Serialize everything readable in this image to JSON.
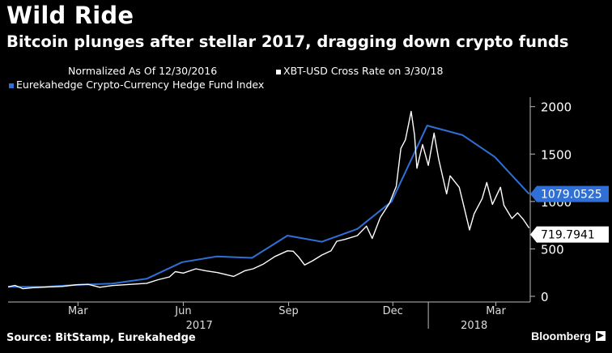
{
  "header": {
    "title": "Wild Ride",
    "subtitle": "Bitcoin plunges after stellar 2017, dragging down crypto funds"
  },
  "legend": {
    "normalized_note": "Normalized As Of 12/30/2016",
    "xbt_label": "XBT-USD Cross Rate  on 3/30/18",
    "fund_label": "Eurekahedge Crypto-Currency Hedge Fund Index"
  },
  "footer": {
    "source": "Source: BitStamp, Eurekahedge",
    "brand": "Bloomberg"
  },
  "colors": {
    "background": "#000000",
    "xbt_series": "#ffffff",
    "fund_series": "#2f6fd6",
    "fund_label_bg": "#2f6fd6"
  },
  "chart_data": {
    "type": "line",
    "title": "Wild Ride",
    "subtitle": "Bitcoin plunges after stellar 2017, dragging down crypto funds",
    "ylim": [
      -60,
      2100
    ],
    "yticks": [
      0,
      500,
      1000,
      1500,
      2000
    ],
    "xlim": [
      "2016-12-30",
      "2018-03-31"
    ],
    "xticks": [
      {
        "date": "2017-03-01",
        "label": "Mar"
      },
      {
        "date": "2017-06-01",
        "label": "Jun"
      },
      {
        "date": "2017-09-01",
        "label": "Sep"
      },
      {
        "date": "2017-12-01",
        "label": "Dec"
      },
      {
        "date": "2018-03-01",
        "label": "Mar"
      }
    ],
    "year_labels": [
      {
        "date": "2017-06-15",
        "label": "2017"
      },
      {
        "date": "2018-02-10",
        "label": "2018"
      }
    ],
    "year_divider": "2018-01-01",
    "grid": false,
    "legend_position": "top-left",
    "series": [
      {
        "name": "XBT-USD Cross Rate  on 3/30/18",
        "color": "#ffffff",
        "last_value_label": "719.7941",
        "points": [
          [
            "2016-12-30",
            100
          ],
          [
            "2017-01-05",
            115
          ],
          [
            "2017-01-12",
            80
          ],
          [
            "2017-01-20",
            90
          ],
          [
            "2017-02-01",
            97
          ],
          [
            "2017-02-15",
            104
          ],
          [
            "2017-02-28",
            122
          ],
          [
            "2017-03-10",
            126
          ],
          [
            "2017-03-20",
            95
          ],
          [
            "2017-03-31",
            113
          ],
          [
            "2017-04-15",
            125
          ],
          [
            "2017-04-30",
            137
          ],
          [
            "2017-05-10",
            175
          ],
          [
            "2017-05-20",
            205
          ],
          [
            "2017-05-25",
            260
          ],
          [
            "2017-06-01",
            245
          ],
          [
            "2017-06-12",
            290
          ],
          [
            "2017-06-20",
            270
          ],
          [
            "2017-07-01",
            250
          ],
          [
            "2017-07-15",
            210
          ],
          [
            "2017-07-25",
            270
          ],
          [
            "2017-08-01",
            290
          ],
          [
            "2017-08-10",
            340
          ],
          [
            "2017-08-20",
            420
          ],
          [
            "2017-08-31",
            480
          ],
          [
            "2017-09-05",
            475
          ],
          [
            "2017-09-10",
            410
          ],
          [
            "2017-09-15",
            330
          ],
          [
            "2017-09-22",
            375
          ],
          [
            "2017-09-30",
            435
          ],
          [
            "2017-10-08",
            480
          ],
          [
            "2017-10-13",
            580
          ],
          [
            "2017-10-20",
            600
          ],
          [
            "2017-10-31",
            640
          ],
          [
            "2017-11-08",
            740
          ],
          [
            "2017-11-13",
            610
          ],
          [
            "2017-11-20",
            830
          ],
          [
            "2017-11-28",
            980
          ],
          [
            "2017-12-04",
            1160
          ],
          [
            "2017-12-08",
            1560
          ],
          [
            "2017-12-12",
            1650
          ],
          [
            "2017-12-17",
            1950
          ],
          [
            "2017-12-20",
            1700
          ],
          [
            "2017-12-22",
            1350
          ],
          [
            "2017-12-27",
            1600
          ],
          [
            "2018-01-01",
            1380
          ],
          [
            "2018-01-06",
            1720
          ],
          [
            "2018-01-10",
            1450
          ],
          [
            "2018-01-17",
            1080
          ],
          [
            "2018-01-20",
            1270
          ],
          [
            "2018-01-28",
            1150
          ],
          [
            "2018-02-01",
            950
          ],
          [
            "2018-02-06",
            700
          ],
          [
            "2018-02-10",
            870
          ],
          [
            "2018-02-17",
            1030
          ],
          [
            "2018-02-21",
            1200
          ],
          [
            "2018-02-26",
            970
          ],
          [
            "2018-03-05",
            1150
          ],
          [
            "2018-03-08",
            960
          ],
          [
            "2018-03-15",
            820
          ],
          [
            "2018-03-20",
            880
          ],
          [
            "2018-03-25",
            810
          ],
          [
            "2018-03-30",
            720
          ]
        ]
      },
      {
        "name": "Eurekahedge Crypto-Currency Hedge Fund Index",
        "color": "#2f6fd6",
        "last_value_label": "1079.0525",
        "points": [
          [
            "2016-12-30",
            100
          ],
          [
            "2017-01-31",
            100
          ],
          [
            "2017-02-28",
            120
          ],
          [
            "2017-03-31",
            135
          ],
          [
            "2017-04-30",
            185
          ],
          [
            "2017-05-31",
            360
          ],
          [
            "2017-06-30",
            420
          ],
          [
            "2017-07-31",
            405
          ],
          [
            "2017-08-31",
            640
          ],
          [
            "2017-09-30",
            575
          ],
          [
            "2017-10-31",
            710
          ],
          [
            "2017-11-30",
            1000
          ],
          [
            "2017-12-31",
            1800
          ],
          [
            "2018-01-31",
            1700
          ],
          [
            "2018-02-28",
            1470
          ],
          [
            "2018-03-30",
            1079
          ]
        ]
      }
    ]
  }
}
